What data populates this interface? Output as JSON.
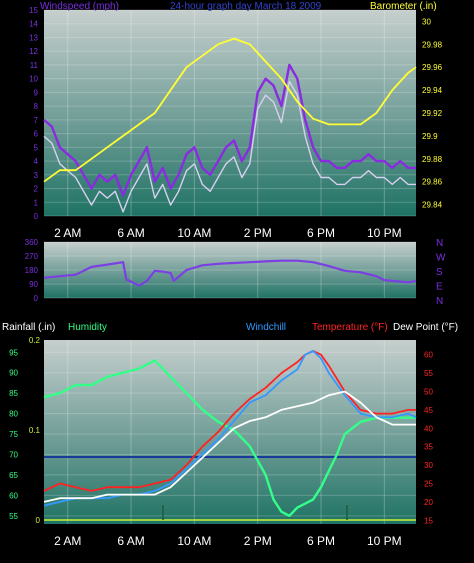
{
  "chart_data": [
    {
      "type": "line",
      "title": "24-hour graph day March 18 2009",
      "left_axis_label": "Windspeed (mph)",
      "right_axis_label": "Barometer (.in)",
      "x_tick_labels": [
        "2 AM",
        "6 AM",
        "10 AM",
        "2 PM",
        "6 PM",
        "10 PM"
      ],
      "x_ticks_hours": [
        2,
        6,
        10,
        14,
        18,
        22
      ],
      "x_range_hours": [
        0.5,
        24
      ],
      "left_ylim": [
        0,
        15
      ],
      "left_ticks": [
        0,
        1,
        2,
        3,
        4,
        5,
        6,
        7,
        8,
        9,
        10,
        11,
        12,
        13,
        14,
        15
      ],
      "right_ylim": [
        29.83,
        30.01
      ],
      "right_ticks": [
        "29.84",
        "29.86",
        "29.88",
        "29.9",
        "29.92",
        "29.94",
        "29.96",
        "29.98",
        "30"
      ],
      "series": [
        {
          "name": "Windspeed",
          "color": "#8a2be2",
          "axis": "left",
          "x": [
            0.5,
            1,
            1.5,
            2,
            2.5,
            3,
            3.5,
            4,
            4.5,
            5,
            5.5,
            6,
            6.5,
            7,
            7.5,
            8,
            8.5,
            9,
            9.5,
            10,
            10.5,
            11,
            11.5,
            12,
            12.5,
            13,
            13.5,
            14,
            14.5,
            15,
            15.5,
            16,
            16.5,
            17,
            17.5,
            18,
            18.5,
            19,
            19.5,
            20,
            20.5,
            21,
            21.5,
            22,
            22.5,
            23,
            23.5,
            24
          ],
          "values": [
            7,
            6.5,
            5,
            4.5,
            4,
            3,
            2,
            3,
            2.5,
            3,
            1.5,
            3,
            4,
            5,
            2.5,
            3.5,
            2,
            3,
            4.5,
            5,
            3.5,
            3,
            4,
            5,
            5.5,
            4,
            5,
            9,
            10,
            9.5,
            8,
            11,
            10,
            7,
            5,
            4,
            4,
            3.5,
            3.5,
            4,
            4,
            4.5,
            4,
            4,
            3.5,
            4,
            3.5,
            3.5
          ]
        },
        {
          "name": "Barometer",
          "color": "#ffff33",
          "axis": "right",
          "x": [
            0.5,
            1.5,
            2.5,
            3.5,
            4.5,
            5.5,
            6.5,
            7.5,
            8.5,
            9.5,
            10.5,
            11.5,
            12.5,
            13.5,
            14.5,
            15.5,
            16.5,
            17.5,
            18.5,
            19.5,
            20.5,
            21.5,
            22.5,
            23.5,
            24
          ],
          "values": [
            29.86,
            29.87,
            29.87,
            29.88,
            29.89,
            29.9,
            29.91,
            29.92,
            29.94,
            29.96,
            29.97,
            29.98,
            29.985,
            29.98,
            29.965,
            29.95,
            29.93,
            29.915,
            29.91,
            29.91,
            29.91,
            29.92,
            29.94,
            29.955,
            29.96
          ]
        }
      ]
    },
    {
      "type": "line",
      "left_ylim": [
        0,
        360
      ],
      "left_ticks": [
        0,
        90,
        180,
        270,
        360
      ],
      "right_labels": [
        "N",
        "W",
        "S",
        "E",
        "N"
      ],
      "series": [
        {
          "name": "Wind direction",
          "color": "#7b3fe4",
          "x": [
            0.5,
            1.5,
            2.5,
            3.5,
            4.5,
            5.5,
            5.7,
            6.5,
            7,
            7.5,
            8,
            8.5,
            8.7,
            9.5,
            10.5,
            11.5,
            12.5,
            13.5,
            14.5,
            15.5,
            16.5,
            17.5,
            18.5,
            19.5,
            20.5,
            21.5,
            22,
            22.5,
            23.5,
            24
          ],
          "values": [
            130,
            140,
            150,
            200,
            215,
            230,
            120,
            80,
            110,
            175,
            170,
            160,
            110,
            180,
            210,
            220,
            225,
            230,
            235,
            240,
            240,
            230,
            205,
            175,
            165,
            140,
            115,
            110,
            100,
            110
          ]
        }
      ]
    },
    {
      "type": "line",
      "left_axis_label": "Rainfall (.in)",
      "humidity_label": "Humidity",
      "windchill_label": "Windchill",
      "temperature_label": "Temperature (°F)",
      "dewpoint_label": "Dew Point (°F)",
      "humidity_ticks": [
        55,
        60,
        65,
        70,
        75,
        80,
        85,
        90,
        95
      ],
      "humidity_ylim": [
        53,
        98
      ],
      "rain_ticks": [
        "0",
        "0.1",
        "0.2"
      ],
      "rain_ylim": [
        0,
        0.2
      ],
      "temp_ticks": [
        15,
        20,
        25,
        30,
        35,
        40,
        45,
        50,
        55,
        60
      ],
      "temp_ylim": [
        14,
        64
      ],
      "series": [
        {
          "name": "Humidity",
          "color": "#33ff88",
          "axis": "humidity",
          "x": [
            0.5,
            1.5,
            2.5,
            3.5,
            4.5,
            5.5,
            6.5,
            7.5,
            8.5,
            9.5,
            10.5,
            11.5,
            12.5,
            13.5,
            14.5,
            15,
            15.5,
            16,
            16.5,
            17,
            17.5,
            18,
            18.5,
            19,
            19.5,
            20.5,
            21.5,
            22.5,
            23.5,
            24
          ],
          "values": [
            84,
            85,
            87,
            87,
            89,
            90,
            91,
            93,
            89,
            85,
            81,
            78,
            76,
            72,
            65,
            59,
            56,
            55,
            57,
            58,
            59,
            62,
            66,
            70,
            75,
            78,
            79,
            79,
            79,
            79
          ]
        },
        {
          "name": "Temperature",
          "color": "#ff2222",
          "axis": "temp",
          "x": [
            0.5,
            1.5,
            2.5,
            3.5,
            4.5,
            5.5,
            6.5,
            7.5,
            8.5,
            9.5,
            10.5,
            11.5,
            12.5,
            13.5,
            14.5,
            15.5,
            16.5,
            17,
            17.5,
            18,
            18.5,
            19.5,
            20.5,
            21.5,
            22.5,
            23.5,
            24
          ],
          "values": [
            23,
            25,
            24,
            23,
            24,
            24,
            24,
            25,
            26,
            30,
            35,
            39,
            44,
            48,
            51,
            55,
            58,
            60,
            61,
            60,
            57,
            50,
            45,
            44,
            44,
            45,
            45
          ]
        },
        {
          "name": "Windchill",
          "color": "#3399ff",
          "axis": "temp",
          "x": [
            0.5,
            1.5,
            2.5,
            3.5,
            4.5,
            5.5,
            6.5,
            7.5,
            8.5,
            9.5,
            10.5,
            11.5,
            12.5,
            13.5,
            14.5,
            15.5,
            16.5,
            17,
            17.5,
            18,
            18.5,
            19.5,
            20.5,
            21.5,
            22.5,
            23.5,
            24
          ],
          "values": [
            19,
            20,
            21,
            21,
            21,
            22,
            22,
            23,
            25,
            29,
            33,
            37,
            42,
            47,
            49,
            53,
            56,
            60,
            61,
            59,
            55,
            49,
            44,
            43,
            43,
            44,
            43
          ]
        },
        {
          "name": "Dew Point",
          "color": "#ffffff",
          "axis": "temp",
          "x": [
            0.5,
            1.5,
            2.5,
            3.5,
            4.5,
            5.5,
            6.5,
            7.5,
            8.5,
            9.5,
            10.5,
            11.5,
            12.5,
            13.5,
            14.5,
            15.5,
            16.5,
            17.5,
            18.5,
            19.5,
            20.5,
            21.5,
            22.5,
            23.5,
            24
          ],
          "values": [
            20,
            21,
            21,
            21,
            22,
            22,
            22,
            22,
            24,
            28,
            32,
            36,
            40,
            42,
            43,
            45,
            46,
            47,
            49,
            50,
            47,
            43,
            41,
            41,
            41
          ]
        }
      ]
    }
  ]
}
